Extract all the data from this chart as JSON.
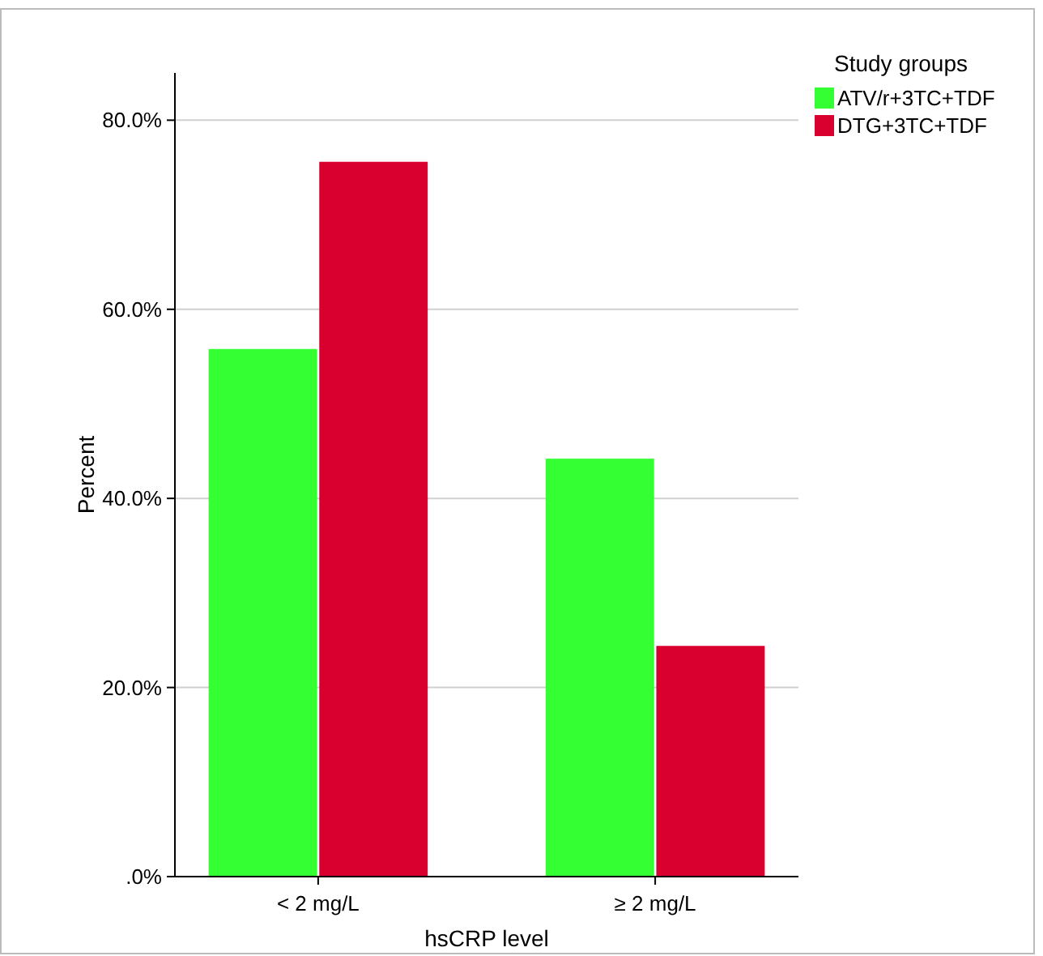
{
  "chart_data": {
    "type": "bar",
    "xlabel": "hsCRP level",
    "ylabel": "Percent",
    "legend_title": "Study groups",
    "categories": [
      "< 2 mg/L",
      "≥ 2 mg/L"
    ],
    "series": [
      {
        "name": "ATV/r+3TC+TDF",
        "color": "#33ff33",
        "values": [
          55.8,
          44.2
        ]
      },
      {
        "name": "DTG+3TC+TDF",
        "color": "#d9002f",
        "values": [
          75.6,
          24.4
        ]
      }
    ],
    "ylim": [
      0,
      85
    ],
    "yticks": [
      {
        "value": 0,
        "label": ".0%"
      },
      {
        "value": 20,
        "label": "20.0%"
      },
      {
        "value": 40,
        "label": "40.0%"
      },
      {
        "value": 60,
        "label": "60.0%"
      },
      {
        "value": 80,
        "label": "80.0%"
      }
    ],
    "grid": "y",
    "legend": "top right"
  }
}
